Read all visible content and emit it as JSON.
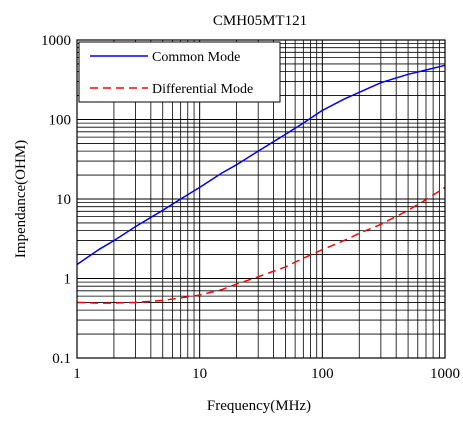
{
  "chart_data": {
    "type": "line",
    "title": "CMH05MT121",
    "xlabel": "Frequency(MHz)",
    "ylabel": "Impendance(OHM)",
    "x_scale": "log",
    "y_scale": "log",
    "xlim": [
      1,
      1000
    ],
    "ylim": [
      0.1,
      1000
    ],
    "x_ticks": [
      "1",
      "10",
      "100",
      "1000"
    ],
    "y_ticks": [
      "0.1",
      "1",
      "10",
      "100",
      "1000"
    ],
    "grid": true,
    "legend_position": "top-left",
    "series": [
      {
        "name": "Common Mode",
        "color": "#0000ff",
        "dash": "solid",
        "x": [
          1,
          1.5,
          2,
          3,
          5,
          7,
          10,
          15,
          20,
          30,
          50,
          70,
          100,
          150,
          200,
          300,
          500,
          700,
          1000
        ],
        "y": [
          1.5,
          2.3,
          3.0,
          4.5,
          7.2,
          10.0,
          14,
          21,
          27,
          40,
          65,
          90,
          130,
          180,
          220,
          290,
          370,
          420,
          480
        ]
      },
      {
        "name": "Differential Mode",
        "color": "#ff0000",
        "dash": "dashed",
        "x": [
          1,
          1.5,
          2,
          3,
          5,
          7,
          10,
          15,
          20,
          30,
          50,
          70,
          100,
          150,
          200,
          300,
          500,
          700,
          1000
        ],
        "y": [
          0.5,
          0.49,
          0.49,
          0.5,
          0.53,
          0.57,
          0.62,
          0.72,
          0.85,
          1.05,
          1.4,
          1.8,
          2.3,
          3.0,
          3.7,
          4.8,
          7.2,
          9.8,
          14
        ]
      }
    ]
  }
}
